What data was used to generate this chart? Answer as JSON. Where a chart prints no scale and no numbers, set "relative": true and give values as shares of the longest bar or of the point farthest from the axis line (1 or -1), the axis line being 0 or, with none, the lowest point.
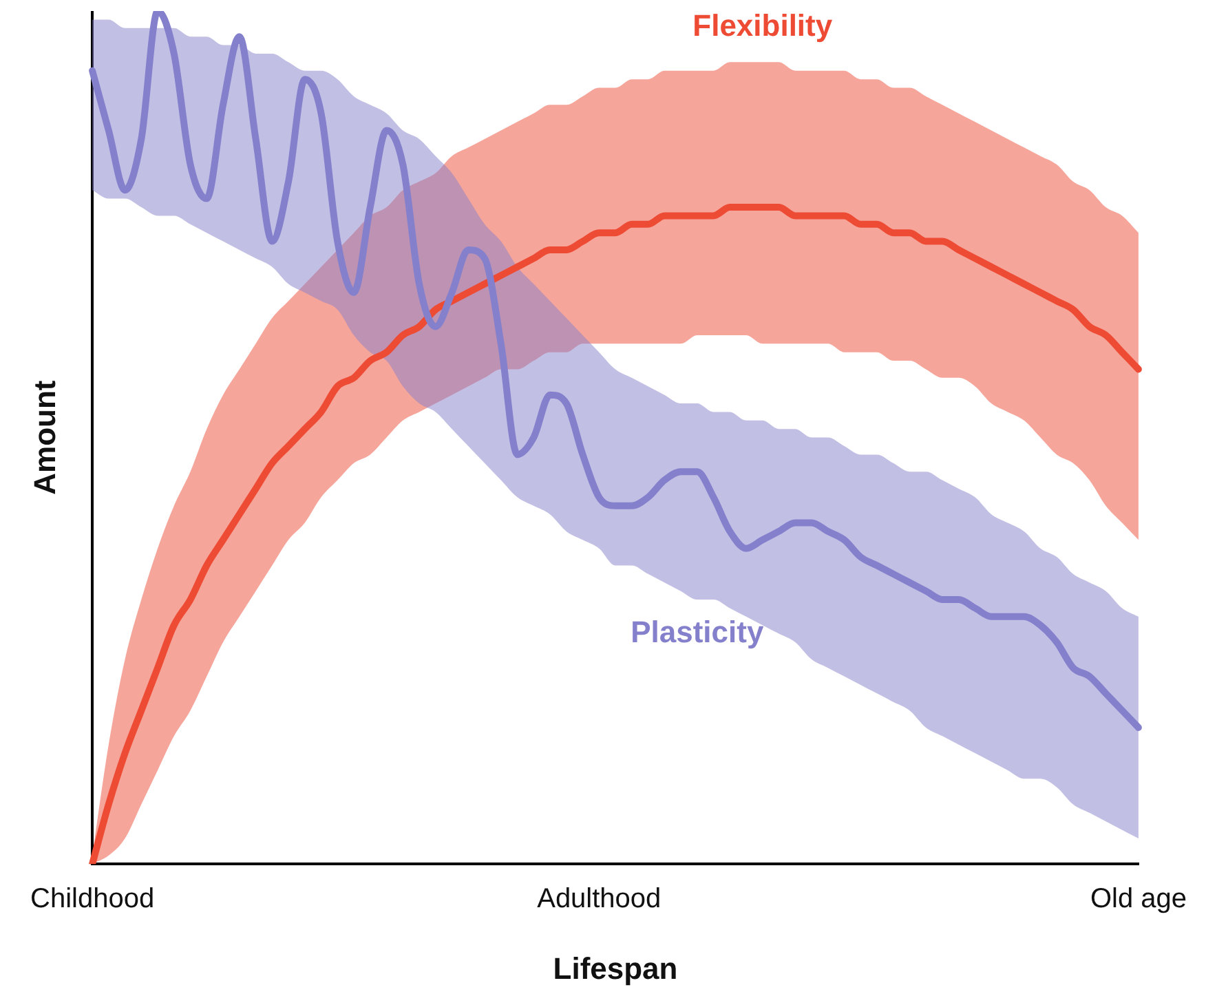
{
  "chart_data": {
    "type": "line",
    "relative": true,
    "legend": false,
    "grid": false,
    "marker": "none",
    "xlabel": "Lifespan",
    "ylabel": "Amount",
    "categories": [
      "Childhood",
      null,
      null,
      null,
      null,
      null,
      null,
      null,
      null,
      null,
      null,
      null,
      null,
      null,
      null,
      null,
      null,
      null,
      null,
      null,
      null,
      null,
      null,
      null,
      null,
      null,
      null,
      null,
      null,
      null,
      null,
      "Adulthood",
      null,
      null,
      null,
      null,
      null,
      null,
      null,
      null,
      null,
      null,
      null,
      null,
      null,
      null,
      null,
      null,
      null,
      null,
      null,
      null,
      null,
      null,
      null,
      null,
      null,
      null,
      null,
      null,
      null,
      null,
      null,
      null,
      "Old age"
    ],
    "series": [
      {
        "name": "Flexibility",
        "color": "#ee4b35",
        "values": [
          0,
          0.07,
          0.13,
          0.18,
          0.23,
          0.28,
          0.31,
          0.35,
          0.38,
          0.41,
          0.44,
          0.47,
          0.49,
          0.51,
          0.53,
          0.56,
          0.57,
          0.59,
          0.6,
          0.62,
          0.63,
          0.65,
          0.66,
          0.67,
          0.68,
          0.69,
          0.7,
          0.71,
          0.72,
          0.72,
          0.73,
          0.74,
          0.74,
          0.75,
          0.75,
          0.76,
          0.76,
          0.76,
          0.76,
          0.77,
          0.77,
          0.77,
          0.77,
          0.76,
          0.76,
          0.76,
          0.76,
          0.75,
          0.75,
          0.74,
          0.74,
          0.73,
          0.73,
          0.72,
          0.71,
          0.7,
          0.69,
          0.68,
          0.67,
          0.66,
          0.65,
          0.63,
          0.62,
          0.6,
          0.58
        ],
        "lower": [
          0,
          0.01,
          0.03,
          0.07,
          0.11,
          0.15,
          0.18,
          0.22,
          0.26,
          0.29,
          0.32,
          0.35,
          0.38,
          0.4,
          0.43,
          0.45,
          0.47,
          0.48,
          0.5,
          0.52,
          0.53,
          0.54,
          0.55,
          0.56,
          0.57,
          0.58,
          0.58,
          0.59,
          0.6,
          0.6,
          0.61,
          0.61,
          0.61,
          0.61,
          0.61,
          0.61,
          0.61,
          0.62,
          0.62,
          0.62,
          0.62,
          0.61,
          0.61,
          0.61,
          0.61,
          0.61,
          0.6,
          0.6,
          0.6,
          0.59,
          0.59,
          0.58,
          0.57,
          0.57,
          0.56,
          0.54,
          0.53,
          0.52,
          0.5,
          0.48,
          0.47,
          0.45,
          0.42,
          0.4,
          0.38
        ],
        "upper": [
          0.01,
          0.14,
          0.24,
          0.31,
          0.37,
          0.42,
          0.46,
          0.51,
          0.55,
          0.58,
          0.61,
          0.64,
          0.66,
          0.68,
          0.7,
          0.72,
          0.74,
          0.76,
          0.77,
          0.79,
          0.8,
          0.81,
          0.83,
          0.84,
          0.85,
          0.86,
          0.87,
          0.88,
          0.89,
          0.89,
          0.9,
          0.91,
          0.91,
          0.92,
          0.92,
          0.93,
          0.93,
          0.93,
          0.93,
          0.94,
          0.94,
          0.94,
          0.94,
          0.93,
          0.93,
          0.93,
          0.93,
          0.92,
          0.92,
          0.91,
          0.91,
          0.9,
          0.89,
          0.88,
          0.87,
          0.86,
          0.85,
          0.84,
          0.83,
          0.82,
          0.8,
          0.79,
          0.77,
          0.76,
          0.74
        ]
      },
      {
        "name": "Plasticity",
        "color": "#8580cc",
        "values": [
          0.93,
          0.86,
          0.79,
          0.85,
          1,
          0.95,
          0.82,
          0.78,
          0.89,
          0.97,
          0.85,
          0.73,
          0.8,
          0.92,
          0.88,
          0.73,
          0.67,
          0.77,
          0.86,
          0.82,
          0.68,
          0.63,
          0.67,
          0.72,
          0.71,
          0.61,
          0.48,
          0.5,
          0.55,
          0.54,
          0.48,
          0.43,
          0.42,
          0.42,
          0.43,
          0.45,
          0.46,
          0.46,
          0.43,
          0.39,
          0.37,
          0.38,
          0.39,
          0.4,
          0.4,
          0.39,
          0.38,
          0.36,
          0.35,
          0.34,
          0.33,
          0.32,
          0.31,
          0.31,
          0.3,
          0.29,
          0.29,
          0.29,
          0.28,
          0.26,
          0.23,
          0.22,
          0.2,
          0.18,
          0.16
        ],
        "lower": [
          0.79,
          0.78,
          0.78,
          0.77,
          0.76,
          0.76,
          0.75,
          0.74,
          0.73,
          0.72,
          0.71,
          0.7,
          0.68,
          0.67,
          0.66,
          0.65,
          0.62,
          0.6,
          0.59,
          0.56,
          0.54,
          0.53,
          0.51,
          0.49,
          0.47,
          0.45,
          0.43,
          0.42,
          0.41,
          0.39,
          0.38,
          0.37,
          0.35,
          0.35,
          0.34,
          0.33,
          0.32,
          0.31,
          0.31,
          0.3,
          0.29,
          0.28,
          0.27,
          0.26,
          0.24,
          0.23,
          0.22,
          0.21,
          0.2,
          0.19,
          0.18,
          0.16,
          0.15,
          0.14,
          0.13,
          0.12,
          0.11,
          0.1,
          0.1,
          0.09,
          0.07,
          0.06,
          0.05,
          0.04,
          0.03
        ],
        "upper": [
          0.99,
          0.99,
          0.98,
          0.98,
          0.98,
          0.98,
          0.97,
          0.97,
          0.96,
          0.96,
          0.95,
          0.95,
          0.94,
          0.93,
          0.93,
          0.92,
          0.9,
          0.89,
          0.88,
          0.86,
          0.85,
          0.83,
          0.81,
          0.78,
          0.75,
          0.73,
          0.7,
          0.68,
          0.66,
          0.64,
          0.62,
          0.6,
          0.58,
          0.57,
          0.56,
          0.55,
          0.54,
          0.54,
          0.53,
          0.53,
          0.52,
          0.52,
          0.51,
          0.51,
          0.5,
          0.5,
          0.49,
          0.48,
          0.48,
          0.47,
          0.46,
          0.46,
          0.45,
          0.44,
          0.43,
          0.41,
          0.4,
          0.39,
          0.37,
          0.36,
          0.34,
          0.33,
          0.32,
          0.3,
          0.29
        ]
      }
    ]
  }
}
